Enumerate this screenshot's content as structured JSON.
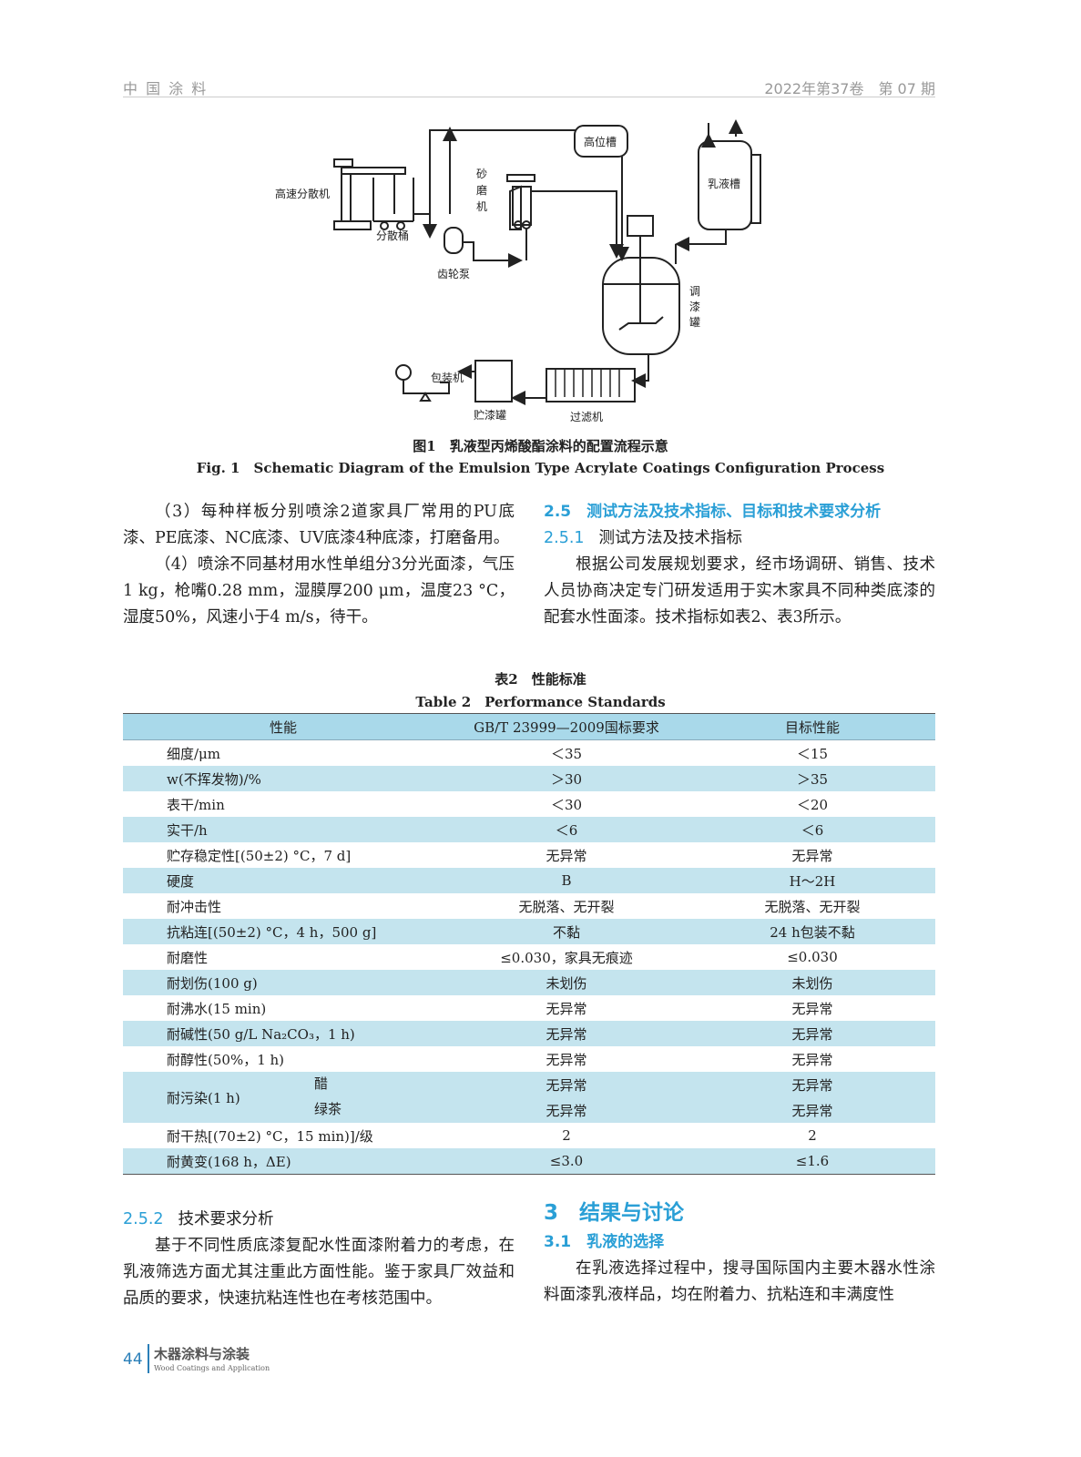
{
  "header": {
    "journal": "中 国 涂 料",
    "issue": "2022年第37卷　第 07 期"
  },
  "figure1": {
    "labels": {
      "high_tank": "高位槽",
      "emulsion_tank": "乳液槽",
      "disperser": "高速分散机",
      "disperse_bucket": "分散桶",
      "sand_mill": [
        "砂",
        "磨",
        "机"
      ],
      "gear_pump": "齿轮泵",
      "mix_tank": [
        "调",
        "漆",
        "罐"
      ],
      "packer": "包装机",
      "storage_tank": "贮漆罐",
      "filter": "过滤机"
    },
    "caption_cn": "图1　乳液型丙烯酸酯涂料的配置流程示意",
    "caption_en": "Fig. 1　Schematic Diagram of the Emulsion Type Acrylate Coatings Configuration Process"
  },
  "left_col1": [
    "（3）每种样板分别喷涂2道家具厂常用的PU底漆、PE底漆、NC底漆、UV底漆4种底漆，打磨备用。",
    "（4）喷涂不同基材用水性单组分3分光面漆，气压1 kg，枪嘴0.28 mm，湿膜厚200 μm，温度23 °C，湿度50%，风速小于4 m/s，待干。"
  ],
  "right_col1": {
    "h2_num": "2.5",
    "h2": "测试方法及技术指标、目标和技术要求分析",
    "h3_num": "2.5.1",
    "h3": "测试方法及技术指标",
    "para": "根据公司发展规划要求，经市场调研、销售、技术人员协商决定专门研发适用于实木家具不同种类底漆的配套水性面漆。技术指标如表2、表3所示。"
  },
  "table2": {
    "title_cn": "表2　性能标准",
    "title_en": "Table 2　Performance Standards",
    "headers": [
      "性能",
      "GB/T 23999—2009国标要求",
      "目标性能"
    ],
    "rows": [
      [
        "细度/μm",
        "＜35",
        "＜15"
      ],
      [
        "w(不挥发物)/%",
        "＞30",
        "＞35"
      ],
      [
        "表干/min",
        "＜30",
        "＜20"
      ],
      [
        "实干/h",
        "＜6",
        "＜6"
      ],
      [
        "贮存稳定性[(50±2) °C，7 d]",
        "无异常",
        "无异常"
      ],
      [
        "硬度",
        "B",
        "H～2H"
      ],
      [
        "耐冲击性",
        "无脱落、无开裂",
        "无脱落、无开裂"
      ],
      [
        "抗粘连[(50±2) °C，4 h，500 g]",
        "不黏",
        "24 h包装不黏"
      ],
      [
        "耐磨性",
        "≤0.030，家具无痕迹",
        "≤0.030"
      ],
      [
        "耐划伤(100 g)",
        "未划伤",
        "未划伤"
      ],
      [
        "耐沸水(15 min)",
        "无异常",
        "无异常"
      ],
      [
        "耐碱性(50 g/L Na₂CO₃，1 h)",
        "无异常",
        "无异常"
      ],
      [
        "耐醇性(50%，1 h)",
        "无异常",
        "无异常"
      ]
    ],
    "stain": {
      "label": "耐污染(1 h)",
      "sub": [
        [
          "醋",
          "无异常",
          "无异常"
        ],
        [
          "绿茶",
          "无异常",
          "无异常"
        ]
      ]
    },
    "rows2": [
      [
        "耐干热[(70±2) °C，15 min)]/级",
        "2",
        "2"
      ],
      [
        "耐黄变(168 h，ΔE)",
        "≤3.0",
        "≤1.6"
      ]
    ]
  },
  "left_col2": {
    "h3_num": "2.5.2",
    "h3": "技术要求分析",
    "para": "基于不同性质底漆复配水性面漆附着力的考虑，在乳液筛选方面尤其注重此方面性能。鉴于家具厂效益和品质的要求，快速抗粘连性也在考核范围中。"
  },
  "right_col2": {
    "h1_num": "3",
    "h1": "结果与讨论",
    "h2_num": "3.1",
    "h2": "乳液的选择",
    "para": "在乳液选择过程中，搜寻国际国内主要木器水性涂料面漆乳液样品，均在附着力、抗粘连和丰满度性"
  },
  "footer": {
    "page": "44",
    "journal_cn": "木器涂料与涂装",
    "journal_en": "Wood Coatings and Application"
  },
  "colors": {
    "accent": "#2a9fd6",
    "table_band": "#c4e4ee",
    "table_header": "#a9d9ea"
  }
}
